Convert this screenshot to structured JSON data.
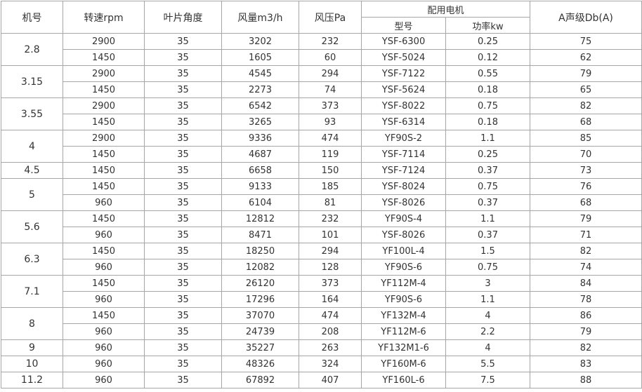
{
  "headers": {
    "model_no": "机号",
    "speed": "转速rpm",
    "blade_angle": "叶片角度",
    "airflow": "风量m3/h",
    "pressure": "风压Pa",
    "motor": "配用电机",
    "motor_type": "型号",
    "motor_power": "功率kw",
    "noise": "A声级Db(A)"
  },
  "groups": [
    {
      "model": "2.8",
      "rows": [
        {
          "speed": "2900",
          "angle": "35",
          "airflow": "3202",
          "pressure": "232",
          "motor_type": "YSF-6300",
          "power": "0.25",
          "noise": "75"
        },
        {
          "speed": "1450",
          "angle": "35",
          "airflow": "1605",
          "pressure": "60",
          "motor_type": "YSF-5024",
          "power": "0.12",
          "noise": "62"
        }
      ]
    },
    {
      "model": "3.15",
      "rows": [
        {
          "speed": "2900",
          "angle": "35",
          "airflow": "4545",
          "pressure": "294",
          "motor_type": "YSF-7122",
          "power": "0.55",
          "noise": "79"
        },
        {
          "speed": "1450",
          "angle": "35",
          "airflow": "2273",
          "pressure": "74",
          "motor_type": "YSF-5624",
          "power": "0.18",
          "noise": "65"
        }
      ]
    },
    {
      "model": "3.55",
      "rows": [
        {
          "speed": "2900",
          "angle": "35",
          "airflow": "6542",
          "pressure": "373",
          "motor_type": "YSF-8022",
          "power": "0.75",
          "noise": "82"
        },
        {
          "speed": "1450",
          "angle": "35",
          "airflow": "3265",
          "pressure": "93",
          "motor_type": "YSF-6314",
          "power": "0.18",
          "noise": "68"
        }
      ]
    },
    {
      "model": "4",
      "rows": [
        {
          "speed": "2900",
          "angle": "35",
          "airflow": "9336",
          "pressure": "474",
          "motor_type": "YF90S-2",
          "power": "1.1",
          "noise": "85"
        },
        {
          "speed": "1450",
          "angle": "35",
          "airflow": "4687",
          "pressure": "119",
          "motor_type": "YSF-7114",
          "power": "0.25",
          "noise": "70"
        }
      ]
    },
    {
      "model": "4.5",
      "rows": [
        {
          "speed": "1450",
          "angle": "35",
          "airflow": "6658",
          "pressure": "150",
          "motor_type": "YSF-7124",
          "power": "0.37",
          "noise": "73"
        }
      ]
    },
    {
      "model": "5",
      "rows": [
        {
          "speed": "1450",
          "angle": "35",
          "airflow": "9133",
          "pressure": "185",
          "motor_type": "YSF-8024",
          "power": "0.75",
          "noise": "76"
        },
        {
          "speed": "960",
          "angle": "35",
          "airflow": "6104",
          "pressure": "81",
          "motor_type": "YSF-8026",
          "power": "0.37",
          "noise": "68"
        }
      ]
    },
    {
      "model": "5.6",
      "rows": [
        {
          "speed": "1450",
          "angle": "35",
          "airflow": "12812",
          "pressure": "232",
          "motor_type": "YF90S-4",
          "power": "1.1",
          "noise": "79"
        },
        {
          "speed": "960",
          "angle": "35",
          "airflow": "8471",
          "pressure": "101",
          "motor_type": "YSF-8026",
          "power": "0.37",
          "noise": "71"
        }
      ]
    },
    {
      "model": "6.3",
      "rows": [
        {
          "speed": "1450",
          "angle": "35",
          "airflow": "18250",
          "pressure": "294",
          "motor_type": "YF100L-4",
          "power": "1.5",
          "noise": "82"
        },
        {
          "speed": "960",
          "angle": "35",
          "airflow": "12082",
          "pressure": "128",
          "motor_type": "YF90S-6",
          "power": "0.75",
          "noise": "74"
        }
      ]
    },
    {
      "model": "7.1",
      "rows": [
        {
          "speed": "1450",
          "angle": "35",
          "airflow": "26120",
          "pressure": "373",
          "motor_type": "YF112M-4",
          "power": "3",
          "noise": "84"
        },
        {
          "speed": "960",
          "angle": "35",
          "airflow": "17296",
          "pressure": "164",
          "motor_type": "YF90S-6",
          "power": "1.1",
          "noise": "78"
        }
      ]
    },
    {
      "model": "8",
      "rows": [
        {
          "speed": "1450",
          "angle": "35",
          "airflow": "37070",
          "pressure": "474",
          "motor_type": "YF132M-4",
          "power": "4",
          "noise": "86"
        },
        {
          "speed": "960",
          "angle": "35",
          "airflow": "24739",
          "pressure": "208",
          "motor_type": "YF112M-6",
          "power": "2.2",
          "noise": "79"
        }
      ]
    },
    {
      "model": "9",
      "rows": [
        {
          "speed": "960",
          "angle": "35",
          "airflow": "35227",
          "pressure": "263",
          "motor_type": "YF132M1-6",
          "power": "4",
          "noise": "82"
        }
      ]
    },
    {
      "model": "10",
      "rows": [
        {
          "speed": "960",
          "angle": "35",
          "airflow": "48326",
          "pressure": "324",
          "motor_type": "YF160M-6",
          "power": "5.5",
          "noise": "83"
        }
      ]
    },
    {
      "model": "11.2",
      "rows": [
        {
          "speed": "960",
          "angle": "35",
          "airflow": "67892",
          "pressure": "407",
          "motor_type": "YF160L-6",
          "power": "7.5",
          "noise": "88"
        }
      ]
    }
  ]
}
